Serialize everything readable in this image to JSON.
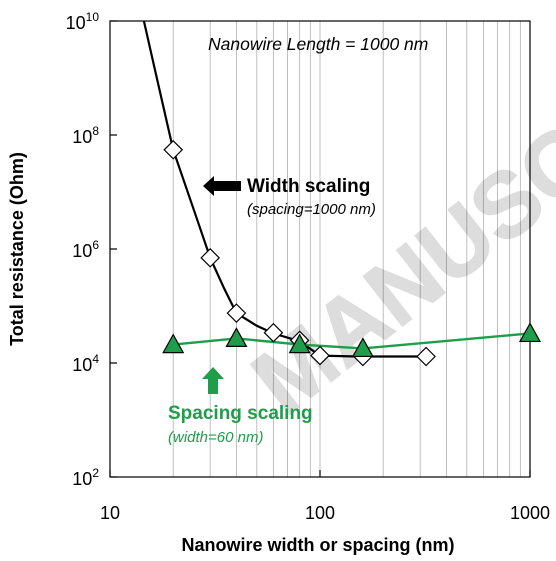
{
  "watermark_text": "MANUSCRIPT",
  "chart_data": {
    "type": "line",
    "scale": {
      "x": "log",
      "y": "log"
    },
    "xlim": [
      10,
      1000
    ],
    "ylim": [
      100,
      10000000000
    ],
    "grid": {
      "x_minor_vertical": true,
      "y": false
    },
    "xlabel": "Nanowire width or spacing (nm)",
    "ylabel": "Total resistance (Ohm)",
    "x_ticks": [
      {
        "value": 10,
        "label": "10"
      },
      {
        "value": 100,
        "label": "100"
      },
      {
        "value": 1000,
        "label": "1000"
      }
    ],
    "y_ticks": [
      {
        "value": 100,
        "base": "10",
        "exp": "2"
      },
      {
        "value": 10000,
        "base": "10",
        "exp": "4"
      },
      {
        "value": 1000000,
        "base": "10",
        "exp": "6"
      },
      {
        "value": 100000000,
        "base": "10",
        "exp": "8"
      },
      {
        "value": 10000000000,
        "base": "10",
        "exp": "10"
      }
    ],
    "annotations": {
      "length": "Nanowire Length = 1000 nm",
      "width_title": "Width scaling",
      "width_sub": "(spacing=1000 nm)",
      "spacing_title": "Spacing scaling",
      "spacing_sub": "(width=60 nm)"
    },
    "colors": {
      "width_series": "#000000",
      "spacing_series": "#1e9e4a",
      "spacing_label": "#1e9e4a"
    },
    "series": [
      {
        "key": "width",
        "marker": "diamond-open",
        "curve": [
          [
            14.5,
            10000000000
          ],
          [
            16,
            2000000000
          ],
          [
            18,
            300000000
          ],
          [
            20,
            55000000
          ],
          [
            25,
            5000000
          ],
          [
            30,
            700000
          ],
          [
            35,
            200000
          ],
          [
            40,
            75000
          ],
          [
            50,
            45000
          ],
          [
            60,
            33000
          ],
          [
            80,
            24000
          ],
          [
            100,
            13500
          ],
          [
            150,
            13000
          ],
          [
            200,
            13000
          ],
          [
            320,
            13000
          ]
        ],
        "points": [
          [
            20,
            55000000
          ],
          [
            30,
            700000
          ],
          [
            40,
            75000
          ],
          [
            60,
            34000
          ],
          [
            80,
            25000
          ],
          [
            100,
            13500
          ],
          [
            160,
            13000
          ],
          [
            320,
            13000
          ]
        ]
      },
      {
        "key": "spacing",
        "marker": "triangle-filled",
        "points": [
          [
            20,
            21000
          ],
          [
            40,
            27000
          ],
          [
            80,
            21000
          ],
          [
            160,
            18000
          ],
          [
            1000,
            33000
          ]
        ]
      }
    ]
  }
}
